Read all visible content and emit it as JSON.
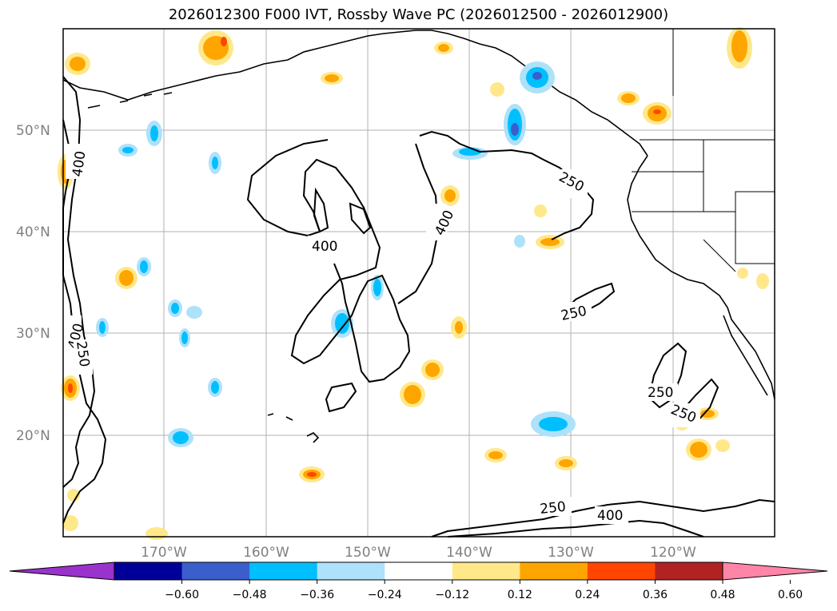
{
  "title": "2026012300 F000 IVT, Rossby Wave PC (2026012500 - 2026012900)",
  "lat_labels": [
    "50°N",
    "40°N",
    "30°N",
    "20°N"
  ],
  "lon_labels": [
    "170°W",
    "160°W",
    "150°W",
    "140°W",
    "130°W",
    "120°W"
  ],
  "contour_labels": [
    "400",
    "400",
    "250",
    "400",
    "400",
    "250",
    "250",
    "250",
    "250",
    "250",
    "400"
  ],
  "colorbar": {
    "ticks": [
      "−0.60",
      "−0.48",
      "−0.36",
      "−0.24",
      "−0.12",
      "0.12",
      "0.24",
      "0.36",
      "0.48",
      "0.60"
    ],
    "colors": [
      "#9933cc",
      "#000099",
      "#3a5fcd",
      "#00bfff",
      "#aee1fa",
      "#ffffff",
      "#ffe88a",
      "#ffa500",
      "#ff4500",
      "#b22222",
      "#ff85a8"
    ]
  }
}
